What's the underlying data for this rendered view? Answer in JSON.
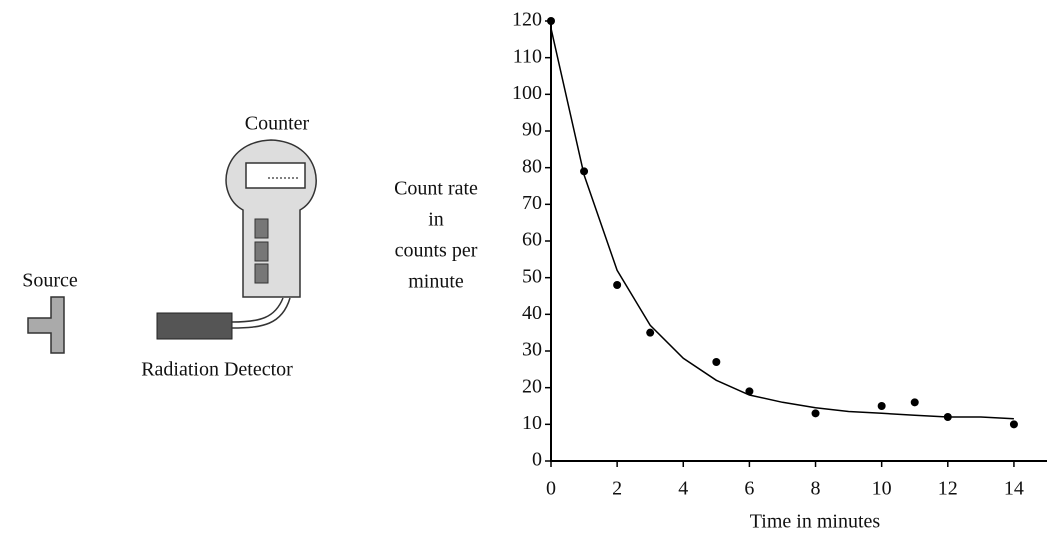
{
  "diagram": {
    "counter_label": "Counter",
    "source_label": "Source",
    "detector_label": "Radiation Detector"
  },
  "chart_data": {
    "type": "scatter",
    "x_label": "Time in minutes",
    "y_label": [
      "Count rate",
      "in",
      "counts per",
      "minute"
    ],
    "xlim": [
      0,
      15
    ],
    "xticks": [
      0,
      2,
      4,
      6,
      8,
      10,
      12,
      14
    ],
    "ylim": [
      0,
      120
    ],
    "yticks": [
      0,
      10,
      20,
      30,
      40,
      50,
      60,
      70,
      80,
      90,
      100,
      110,
      120
    ],
    "series": [
      {
        "type": "scatter",
        "color": "#000000",
        "x": [
          0,
          1,
          2,
          3,
          5,
          6,
          8,
          10,
          11,
          12,
          14
        ],
        "values": [
          120,
          79,
          48,
          35,
          27,
          19,
          13,
          15,
          16,
          12,
          10
        ]
      },
      {
        "type": "line",
        "color": "#000000",
        "x": [
          0,
          1,
          2,
          3,
          4,
          5,
          6,
          7,
          8,
          9,
          10,
          11,
          12,
          13,
          14
        ],
        "values": [
          118,
          78,
          52,
          37,
          28,
          22,
          18,
          16,
          14.5,
          13.5,
          13,
          12.5,
          12,
          12,
          11.5
        ]
      }
    ]
  }
}
